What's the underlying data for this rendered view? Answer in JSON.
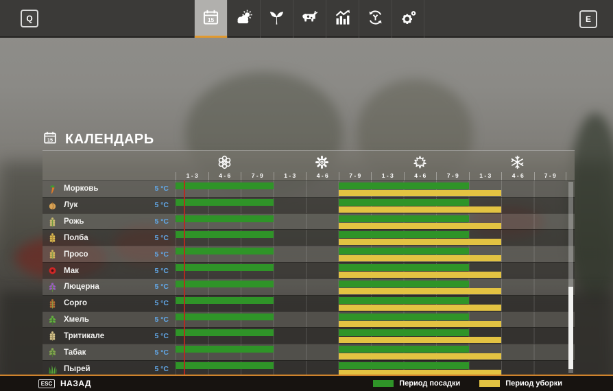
{
  "toolbar": {
    "left_key": "Q",
    "right_key": "E",
    "tabs": [
      {
        "icon": "calendar-icon",
        "selected": true
      },
      {
        "icon": "weather-icon",
        "selected": false
      },
      {
        "icon": "crops-icon",
        "selected": false
      },
      {
        "icon": "animals-icon",
        "selected": false
      },
      {
        "icon": "statistics-icon",
        "selected": false
      },
      {
        "icon": "economy-icon",
        "selected": false
      },
      {
        "icon": "settings-icon",
        "selected": false
      }
    ]
  },
  "page": {
    "title": "КАЛЕНДАРЬ"
  },
  "calendar": {
    "seasons": [
      {
        "name": "spring",
        "icon": "blossom-icon"
      },
      {
        "name": "summer",
        "icon": "sun-icon"
      },
      {
        "name": "autumn",
        "icon": "maple-leaf-icon"
      },
      {
        "name": "winter",
        "icon": "snowflake-icon"
      }
    ],
    "period_labels": [
      "1 - 3",
      "4 - 6",
      "7 - 9"
    ],
    "columns_per_season": 3,
    "crops": [
      {
        "name": "Морковь",
        "temp": "5 °C",
        "icon": "carrot-icon",
        "shape": "carrot",
        "colors": [
          "#E07A28",
          "#3E9B33"
        ],
        "planting_cols": [
          [
            1,
            3
          ],
          [
            6,
            9
          ]
        ],
        "harvest_cols": [
          [
            6,
            10
          ]
        ]
      },
      {
        "name": "Лук",
        "temp": "5 °C",
        "icon": "onion-icon",
        "shape": "onion",
        "colors": [
          "#D9A355",
          "#8A5A28"
        ],
        "planting_cols": [
          [
            1,
            3
          ],
          [
            6,
            9
          ]
        ],
        "harvest_cols": [
          [
            6,
            10
          ]
        ]
      },
      {
        "name": "Рожь",
        "temp": "5 °C",
        "icon": "rye-icon",
        "shape": "spike",
        "colors": [
          "#C9BA6E",
          "#6B9A3C"
        ],
        "planting_cols": [
          [
            1,
            3
          ],
          [
            6,
            9
          ]
        ],
        "harvest_cols": [
          [
            6,
            10
          ]
        ]
      },
      {
        "name": "Полба",
        "temp": "5 °C",
        "icon": "spelt-icon",
        "shape": "spike",
        "colors": [
          "#D9B74E",
          "#B5903A"
        ],
        "planting_cols": [
          [
            1,
            3
          ],
          [
            6,
            9
          ]
        ],
        "harvest_cols": [
          [
            6,
            10
          ]
        ]
      },
      {
        "name": "Просо",
        "temp": "5 °C",
        "icon": "millet-icon",
        "shape": "spike",
        "colors": [
          "#CDB258",
          "#86A04A"
        ],
        "planting_cols": [
          [
            1,
            3
          ],
          [
            6,
            9
          ]
        ],
        "harvest_cols": [
          [
            6,
            10
          ]
        ]
      },
      {
        "name": "Мак",
        "temp": "5 °C",
        "icon": "poppy-icon",
        "shape": "poppy",
        "colors": [
          "#CE2726",
          "#401015"
        ],
        "planting_cols": [
          [
            1,
            3
          ],
          [
            6,
            9
          ]
        ],
        "harvest_cols": [
          [
            6,
            10
          ]
        ]
      },
      {
        "name": "Люцерна",
        "temp": "5 °C",
        "icon": "alfalfa-icon",
        "shape": "sprig",
        "colors": [
          "#9A5FC0",
          "#5E8A3C"
        ],
        "planting_cols": [
          [
            1,
            3
          ],
          [
            6,
            9
          ]
        ],
        "harvest_cols": [
          [
            6,
            10
          ]
        ]
      },
      {
        "name": "Сорго",
        "temp": "5 °C",
        "icon": "sorghum-icon",
        "shape": "spike",
        "colors": [
          "#B06A32",
          "#8A9A42"
        ],
        "planting_cols": [
          [
            1,
            3
          ],
          [
            6,
            9
          ]
        ],
        "harvest_cols": [
          [
            6,
            10
          ]
        ]
      },
      {
        "name": "Хмель",
        "temp": "5 °C",
        "icon": "hops-icon",
        "shape": "sprig",
        "colors": [
          "#64B040",
          "#3D7A2A"
        ],
        "planting_cols": [
          [
            1,
            3
          ],
          [
            6,
            9
          ]
        ],
        "harvest_cols": [
          [
            6,
            10
          ]
        ]
      },
      {
        "name": "Тритикале",
        "temp": "5 °C",
        "icon": "triticale-icon",
        "shape": "spike",
        "colors": [
          "#D2C088",
          "#A39563"
        ],
        "planting_cols": [
          [
            1,
            3
          ],
          [
            6,
            9
          ]
        ],
        "harvest_cols": [
          [
            6,
            10
          ]
        ]
      },
      {
        "name": "Табак",
        "temp": "5 °C",
        "icon": "tobacco-icon",
        "shape": "sprig",
        "colors": [
          "#84A84E",
          "#4E7A33"
        ],
        "planting_cols": [
          [
            1,
            3
          ],
          [
            6,
            9
          ]
        ],
        "harvest_cols": [
          [
            6,
            10
          ]
        ]
      },
      {
        "name": "Пырей",
        "temp": "5 °C",
        "icon": "couchgrass-icon",
        "shape": "grass",
        "colors": [
          "#57A63B",
          "#3E8A2E"
        ],
        "planting_cols": [
          [
            1,
            3
          ],
          [
            6,
            9
          ]
        ],
        "harvest_cols": [
          [
            6,
            10
          ]
        ]
      }
    ]
  },
  "legend": [
    {
      "label": "Период посадки",
      "color": "#2F9428"
    },
    {
      "label": "Период уборки",
      "color": "#E3C342"
    }
  ],
  "footer": {
    "key": "ESC",
    "back_label": "НАЗАД"
  },
  "colors": {
    "planting_green": "#2F9428",
    "harvest_yellow": "#E3C342",
    "accent_orange": "#E1992E",
    "temp_blue": "#62A8E8",
    "current_day_red": "#C1251B"
  }
}
